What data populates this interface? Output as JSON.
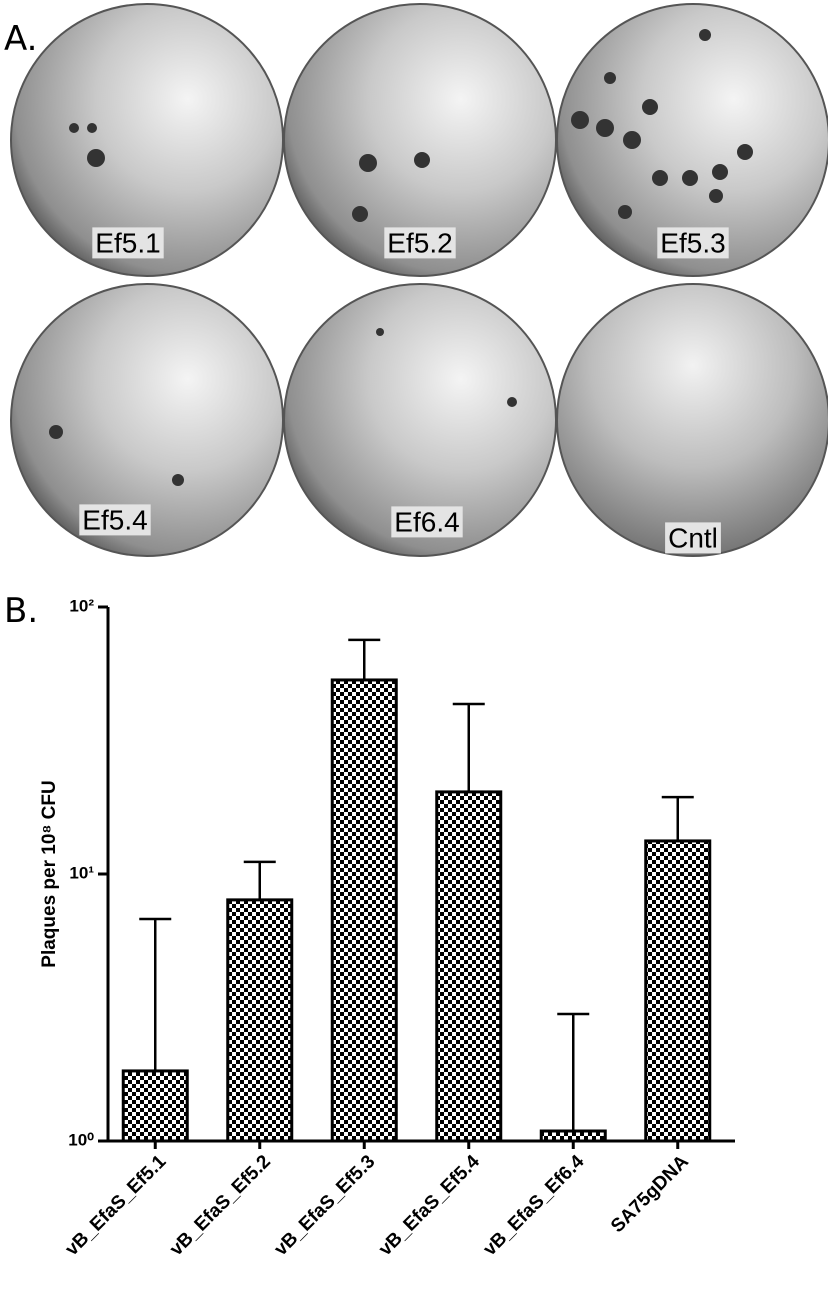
{
  "panel_labels": [
    "A.",
    "B."
  ],
  "plates": [
    "Ef5.1",
    "Ef5.2",
    "Ef5.3",
    "Ef5.4",
    "Ef6.4",
    "Cntl"
  ],
  "chart_data": {
    "type": "bar",
    "y_label": "Plaques per 10⁸ CFU",
    "categories": [
      "vB_EfaS_Ef5.1",
      "vB_EfaS_Ef5.2",
      "vB_EfaS_Ef5.3",
      "vB_EfaS_Ef5.4",
      "vB_EfaS_Ef6.4",
      "SA75gDNA"
    ],
    "values": [
      1.83,
      8.0,
      53.3,
      20.3,
      1.09,
      13.3
    ],
    "errors": [
      4.95,
      3.1,
      22,
      23,
      1.9,
      6.1
    ],
    "color": "#000000",
    "log_y": true,
    "ylim": [
      1,
      100
    ],
    "yticks": [
      {
        "value": 1,
        "label": "10⁰"
      },
      {
        "value": 10,
        "label": "10¹"
      },
      {
        "value": 100,
        "label": "10²"
      }
    ]
  }
}
